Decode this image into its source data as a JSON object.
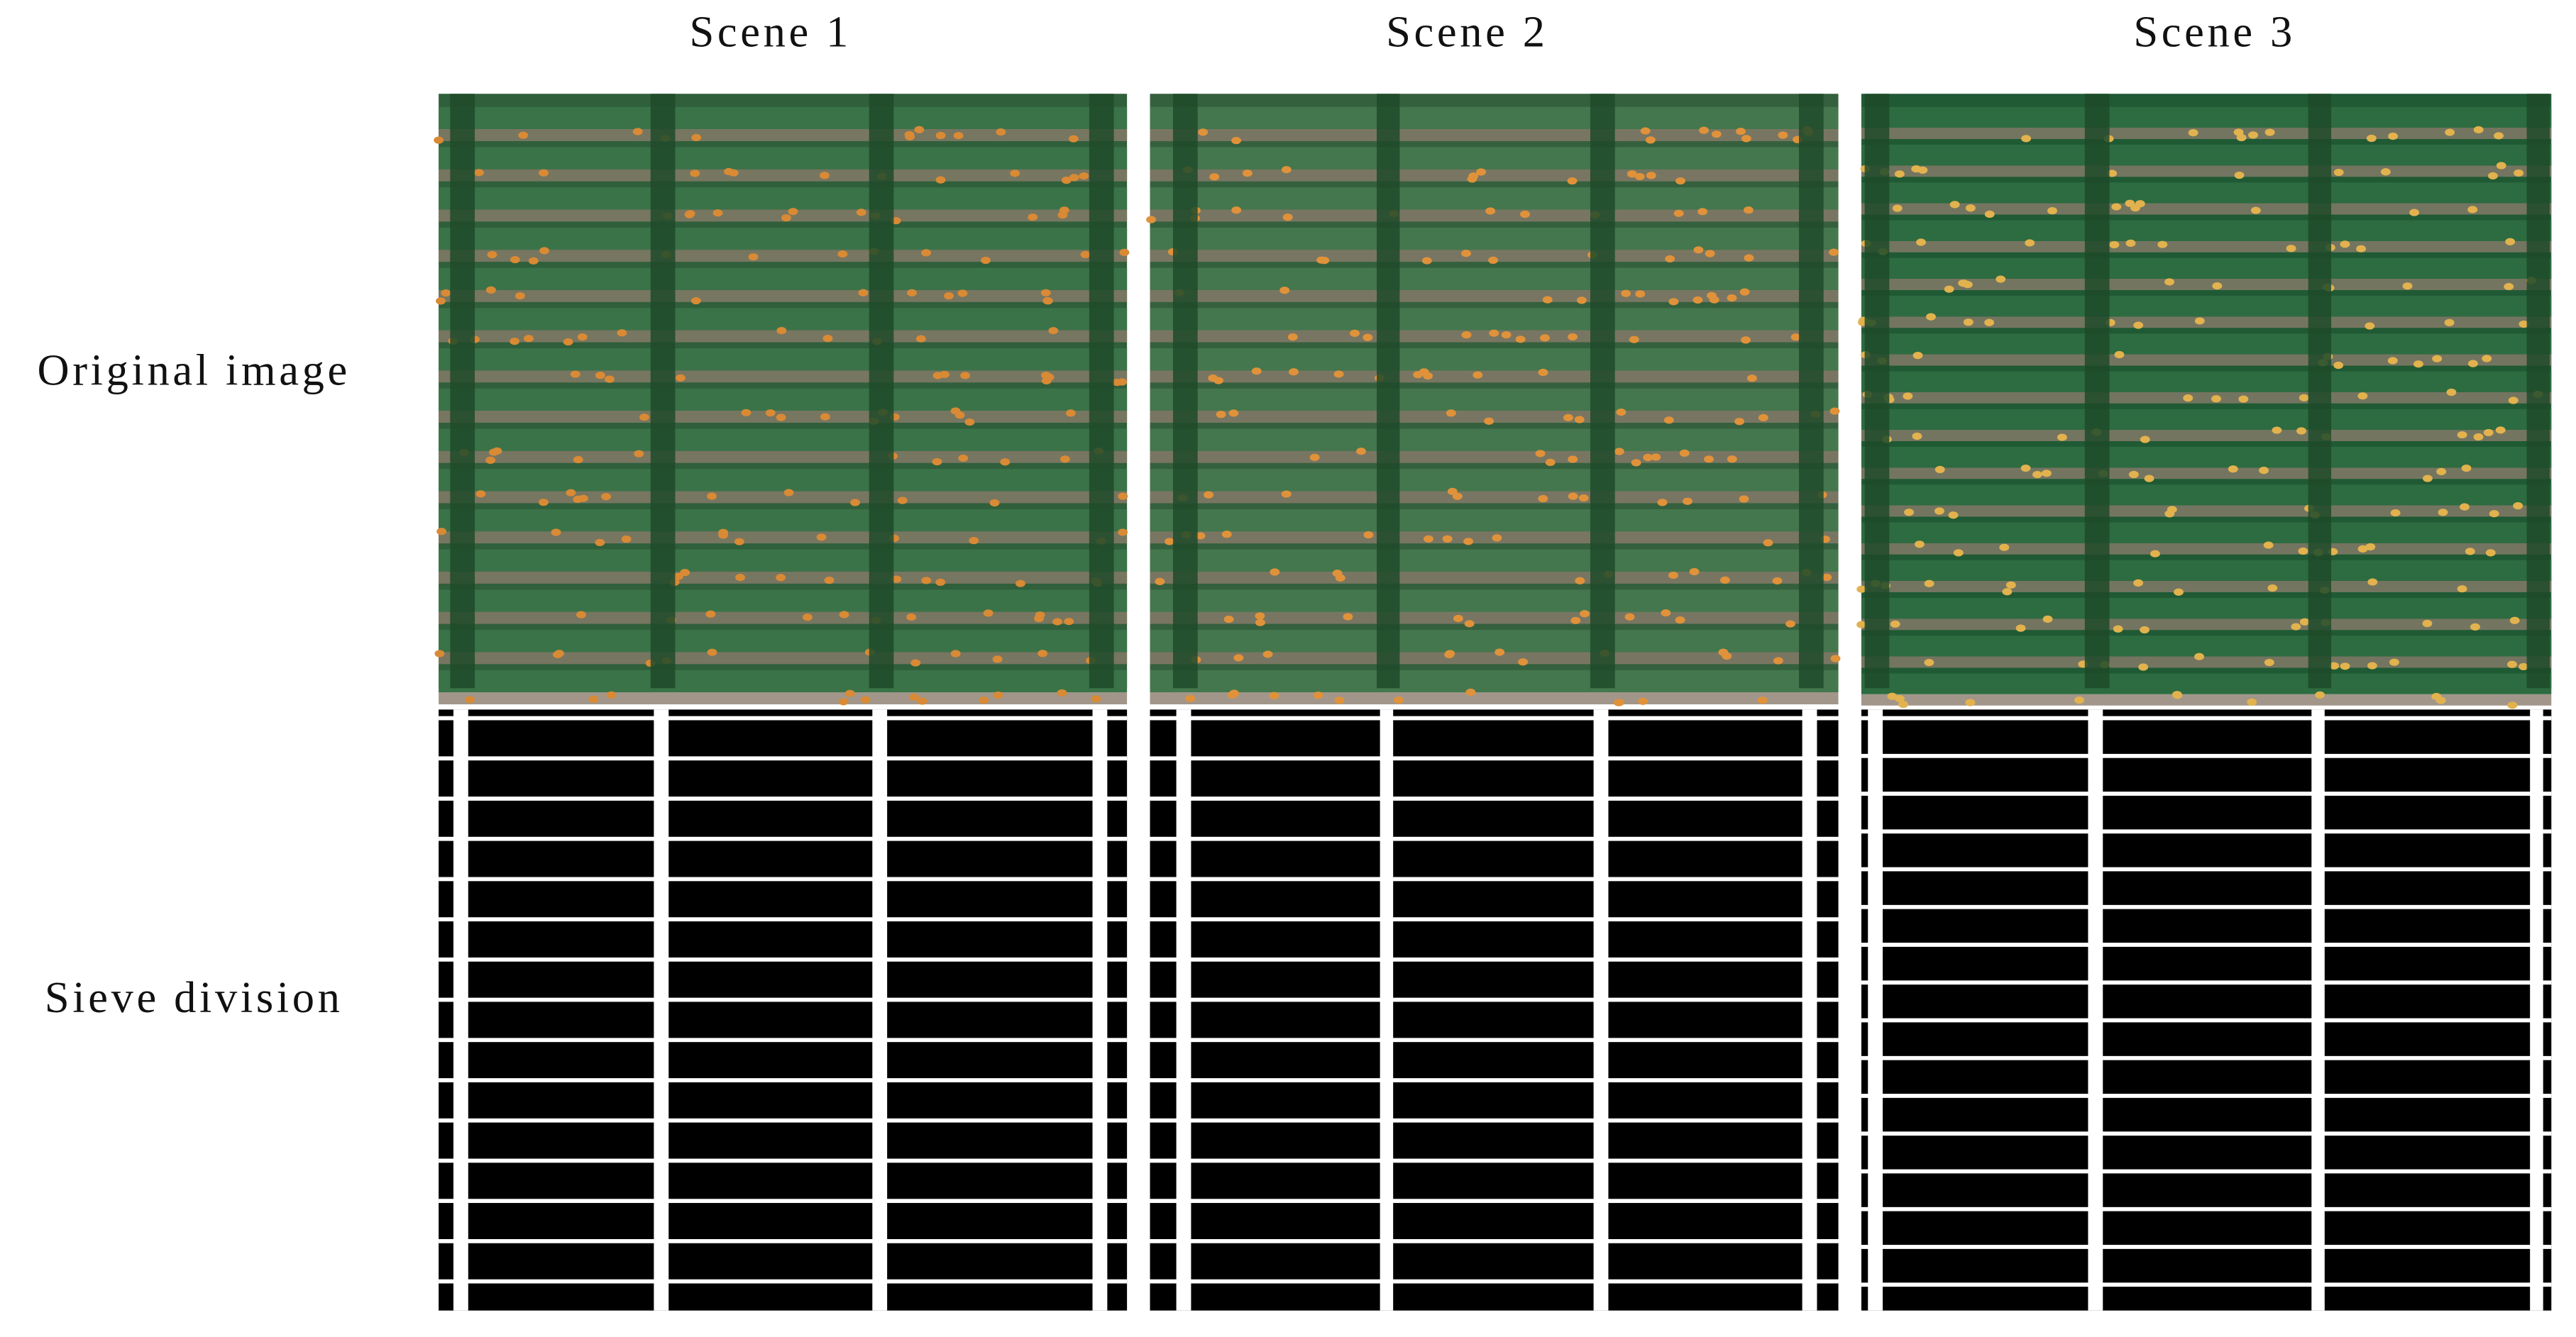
{
  "columns": [
    "Scene 1",
    "Scene 2",
    "Scene 3"
  ],
  "rows": [
    "Original image",
    "Sieve division"
  ]
}
